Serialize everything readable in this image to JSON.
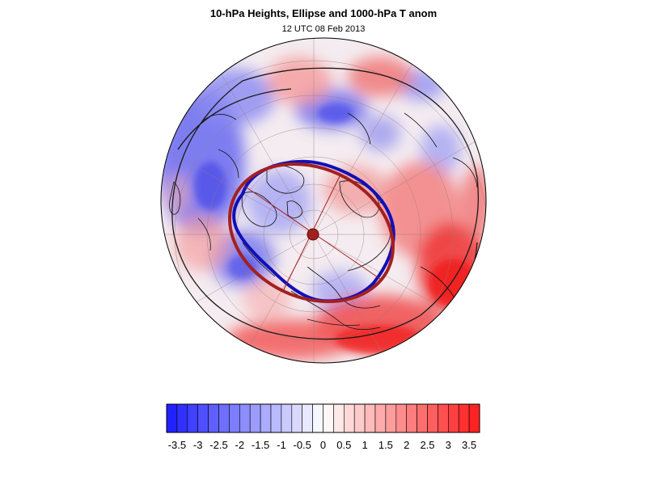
{
  "title": "10-hPa Heights, Ellipse and 1000-hPa T anom",
  "subtitle": "12 UTC 08 Feb 2013",
  "colorbar": {
    "labels": [
      "-3.5",
      "-3",
      "-2.5",
      "-2",
      "-1.5",
      "-1",
      "-0.5",
      "0",
      "0.5",
      "1",
      "1.5",
      "2",
      "2.5",
      "3",
      "3.5"
    ],
    "min": -3.75,
    "max": 3.75,
    "step": 0.25
  },
  "colors": {
    "negative_max": "#1a1aff",
    "neutral": "#ffffff",
    "positive_max": "#ff1a1a",
    "contour_height": "#1a1a1a",
    "contour_blue": "#1010b8",
    "ellipse": "#a32020"
  }
}
